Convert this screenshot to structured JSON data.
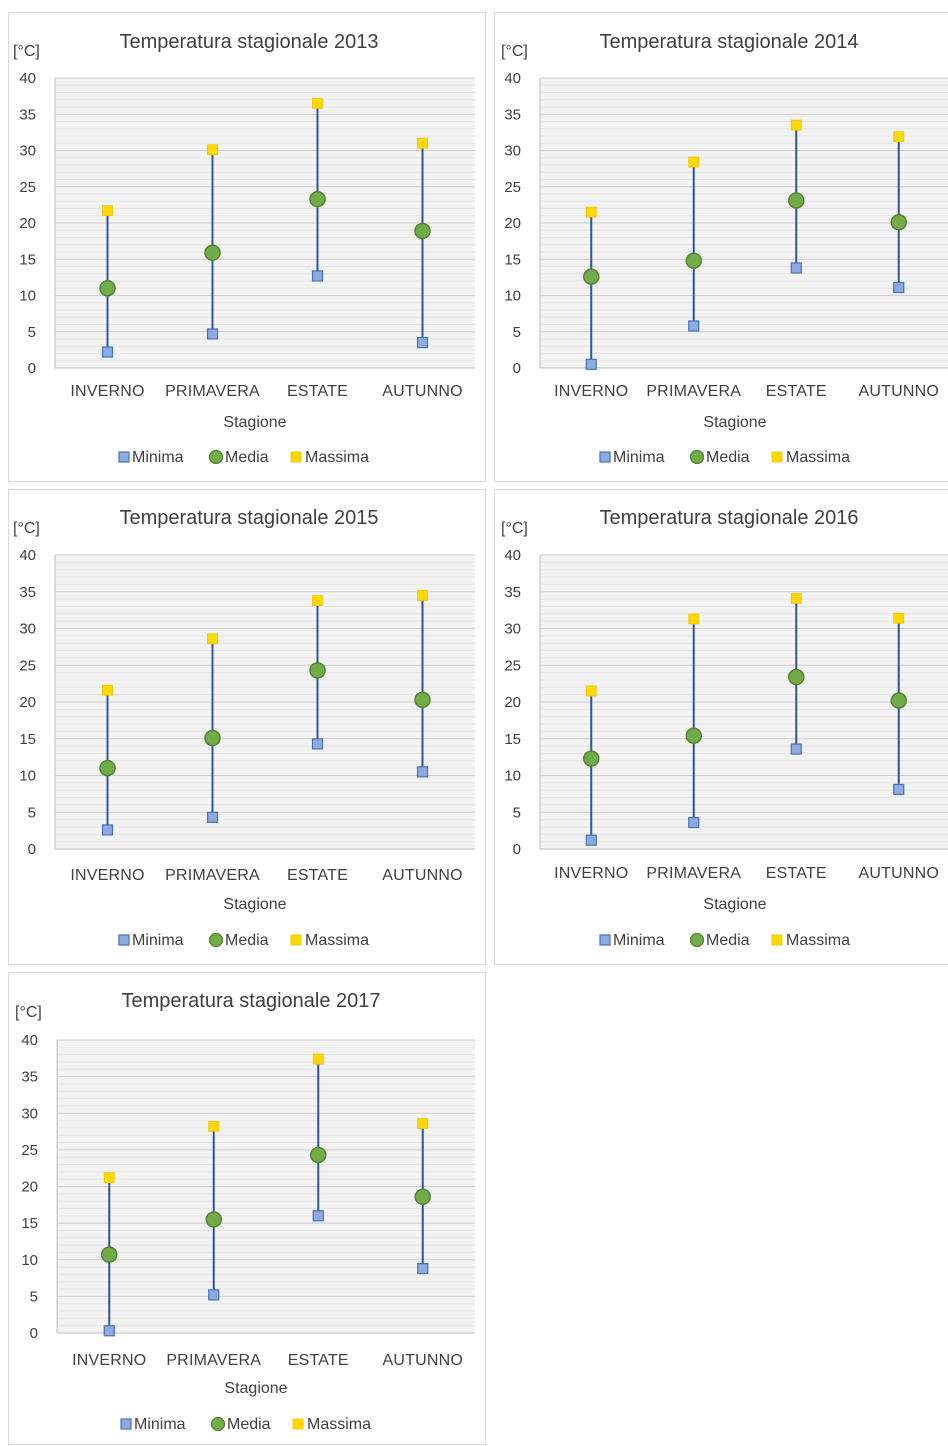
{
  "colors": {
    "minima_fill": "#8faadc",
    "minima_stroke": "#4472c4",
    "media_fill": "#70ad47",
    "media_stroke": "#548235",
    "massima_fill": "#ffd800",
    "range_line": "#2f5597",
    "grid": "#d9d9d9",
    "plot_bg": "#f2f2f2"
  },
  "chart_data": [
    {
      "type": "scatter",
      "title": "Temperatura stagionale 2013",
      "ylabel": "[°C]",
      "xlabel": "Stagione",
      "categories": [
        "INVERNO",
        "PRIMAVERA",
        "ESTATE",
        "AUTUNNO"
      ],
      "ylim": [
        0,
        40
      ],
      "yticks": [
        0,
        5,
        10,
        15,
        20,
        25,
        30,
        35,
        40
      ],
      "grid": true,
      "legend": "bottom",
      "series": [
        {
          "name": "Minima",
          "values": [
            2.2,
            4.7,
            12.7,
            3.5
          ]
        },
        {
          "name": "Media",
          "values": [
            11.0,
            15.9,
            23.3,
            18.9
          ]
        },
        {
          "name": "Massima",
          "values": [
            21.7,
            30.1,
            36.5,
            31.0
          ]
        }
      ]
    },
    {
      "type": "scatter",
      "title": "Temperatura stagionale 2014",
      "ylabel": "[°C]",
      "xlabel": "Stagione",
      "categories": [
        "INVERNO",
        "PRIMAVERA",
        "ESTATE",
        "AUTUNNO"
      ],
      "ylim": [
        0,
        40
      ],
      "yticks": [
        0,
        5,
        10,
        15,
        20,
        25,
        30,
        35,
        40
      ],
      "grid": true,
      "legend": "bottom",
      "series": [
        {
          "name": "Minima",
          "values": [
            0.5,
            5.8,
            13.8,
            11.1
          ]
        },
        {
          "name": "Media",
          "values": [
            12.6,
            14.8,
            23.1,
            20.1
          ]
        },
        {
          "name": "Massima",
          "values": [
            21.5,
            28.4,
            33.5,
            31.9
          ]
        }
      ]
    },
    {
      "type": "scatter",
      "title": "Temperatura stagionale 2015",
      "ylabel": "[°C]",
      "xlabel": "Stagione",
      "categories": [
        "INVERNO",
        "PRIMAVERA",
        "ESTATE",
        "AUTUNNO"
      ],
      "ylim": [
        0,
        40
      ],
      "yticks": [
        0,
        5,
        10,
        15,
        20,
        25,
        30,
        35,
        40
      ],
      "grid": true,
      "legend": "bottom",
      "series": [
        {
          "name": "Minima",
          "values": [
            2.6,
            4.3,
            14.3,
            10.5
          ]
        },
        {
          "name": "Media",
          "values": [
            11.0,
            15.1,
            24.3,
            20.3
          ]
        },
        {
          "name": "Massima",
          "values": [
            21.6,
            28.6,
            33.8,
            34.5
          ]
        }
      ]
    },
    {
      "type": "scatter",
      "title": "Temperatura stagionale 2016",
      "ylabel": "[°C]",
      "xlabel": "Stagione",
      "categories": [
        "INVERNO",
        "PRIMAVERA",
        "ESTATE",
        "AUTUNNO"
      ],
      "ylim": [
        0,
        40
      ],
      "yticks": [
        0,
        5,
        10,
        15,
        20,
        25,
        30,
        35,
        40
      ],
      "grid": true,
      "legend": "bottom",
      "series": [
        {
          "name": "Minima",
          "values": [
            1.2,
            3.6,
            13.6,
            8.1
          ]
        },
        {
          "name": "Media",
          "values": [
            12.3,
            15.4,
            23.4,
            20.2
          ]
        },
        {
          "name": "Massima",
          "values": [
            21.5,
            31.3,
            34.1,
            31.4
          ]
        }
      ]
    },
    {
      "type": "scatter",
      "title": "Temperatura stagionale 2017",
      "ylabel": "[°C]",
      "xlabel": "Stagione",
      "categories": [
        "INVERNO",
        "PRIMAVERA",
        "ESTATE",
        "AUTUNNO"
      ],
      "ylim": [
        0,
        40
      ],
      "yticks": [
        0,
        5,
        10,
        15,
        20,
        25,
        30,
        35,
        40
      ],
      "grid": true,
      "legend": "bottom",
      "series": [
        {
          "name": "Minima",
          "values": [
            0.3,
            5.2,
            16.0,
            8.8
          ]
        },
        {
          "name": "Media",
          "values": [
            10.7,
            15.5,
            24.3,
            18.6
          ]
        },
        {
          "name": "Massima",
          "values": [
            21.2,
            28.2,
            37.4,
            28.6
          ]
        }
      ]
    }
  ]
}
